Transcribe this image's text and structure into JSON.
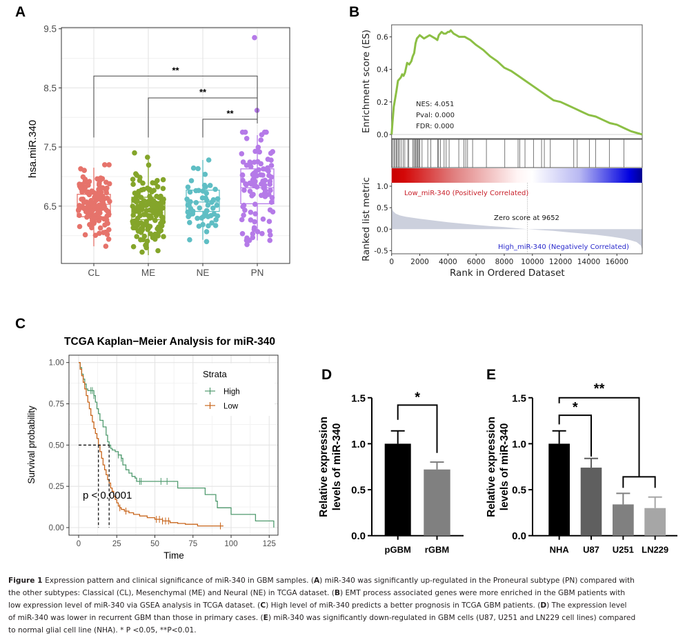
{
  "panels": {
    "A": {
      "label": "A"
    },
    "B": {
      "label": "B"
    },
    "C": {
      "label": "C"
    },
    "D": {
      "label": "D"
    },
    "E": {
      "label": "E"
    }
  },
  "chart_data": [
    {
      "id": "A",
      "type": "box",
      "title": "",
      "xlabel": "",
      "ylabel": "hsa.miR.340",
      "ylim": [
        5.53,
        9.52
      ],
      "yticks": [
        6.5,
        7.5,
        8.5,
        9.5
      ],
      "ytick_labels": [
        "6.5",
        "7.5",
        "8.5",
        "9.5"
      ],
      "grid": true,
      "categories": [
        "CL",
        "ME",
        "NE",
        "PN"
      ],
      "colors": [
        "#e6736b",
        "#84a52a",
        "#5fbec4",
        "#b57ae8"
      ],
      "boxes": [
        {
          "category": "CL",
          "whisker_low": 5.82,
          "q1": 6.32,
          "median": 6.53,
          "q3": 6.7,
          "whisker_high": 7.15,
          "outliers": []
        },
        {
          "category": "ME",
          "whisker_low": 5.67,
          "q1": 6.27,
          "median": 6.44,
          "q3": 6.65,
          "whisker_high": 7.35,
          "outliers": []
        },
        {
          "category": "NE",
          "whisker_low": 5.93,
          "q1": 6.41,
          "median": 6.57,
          "q3": 6.77,
          "whisker_high": 7.28,
          "outliers": [
            7.28,
            5.9
          ]
        },
        {
          "category": "PN",
          "whisker_low": 5.92,
          "q1": 6.54,
          "median": 6.81,
          "q3": 7.13,
          "whisker_high": 7.7,
          "outliers": [
            9.35,
            8.12,
            5.85
          ]
        }
      ],
      "jitter_point_counts": {
        "CL": 140,
        "ME": 160,
        "NE": 55,
        "PN": 100
      },
      "significance": [
        {
          "from": "CL",
          "to": "PN",
          "label": "**",
          "y": 8.7
        },
        {
          "from": "ME",
          "to": "PN",
          "label": "**",
          "y": 8.33
        },
        {
          "from": "NE",
          "to": "PN",
          "label": "**",
          "y": 7.97
        }
      ]
    },
    {
      "id": "B",
      "type": "line",
      "title": "",
      "xlabel": "Rank in Ordered Dataset",
      "ylabel_top": "Enrichment score (ES)",
      "ylabel_bottom": "Ranked list metric",
      "xlim": [
        0,
        17800
      ],
      "xticks": [
        0,
        2000,
        4000,
        6000,
        8000,
        10000,
        12000,
        14000,
        16000
      ],
      "xtick_labels": [
        "0",
        "2000",
        "4000",
        "6000",
        "8000",
        "10000",
        "12000",
        "14000",
        "16000"
      ],
      "es_ylim": [
        0,
        0.67
      ],
      "es_yticks": [
        "0.0",
        "0.2",
        "0.4",
        "0.6"
      ],
      "es_color": "#8cbf45",
      "es_curve": {
        "x": [
          0,
          60,
          150,
          250,
          350,
          450,
          550,
          650,
          750,
          850,
          950,
          1100,
          1250,
          1400,
          1500,
          1600,
          1700,
          1800,
          1900,
          2000,
          2150,
          2300,
          2500,
          2700,
          2900,
          3100,
          3250,
          3350,
          3450,
          3550,
          3700,
          3850,
          4000,
          4100,
          4200,
          4400,
          4600,
          4800,
          5000,
          5200,
          5400,
          5600,
          6000,
          6500,
          7000,
          7500,
          8000,
          8500,
          9000,
          9500,
          10000,
          10500,
          11000,
          11500,
          12000,
          12500,
          13000,
          13500,
          14000,
          14500,
          15000,
          15500,
          16000,
          16500,
          17000,
          17800
        ],
        "y": [
          0.0,
          0.07,
          0.17,
          0.22,
          0.27,
          0.33,
          0.34,
          0.35,
          0.37,
          0.36,
          0.38,
          0.44,
          0.43,
          0.45,
          0.48,
          0.5,
          0.56,
          0.59,
          0.6,
          0.61,
          0.6,
          0.59,
          0.6,
          0.61,
          0.6,
          0.59,
          0.58,
          0.61,
          0.62,
          0.63,
          0.62,
          0.62,
          0.63,
          0.63,
          0.64,
          0.62,
          0.61,
          0.6,
          0.6,
          0.6,
          0.59,
          0.58,
          0.55,
          0.52,
          0.48,
          0.45,
          0.41,
          0.39,
          0.36,
          0.33,
          0.3,
          0.27,
          0.24,
          0.21,
          0.2,
          0.18,
          0.16,
          0.14,
          0.12,
          0.11,
          0.09,
          0.07,
          0.06,
          0.04,
          0.02,
          0.0
        ]
      },
      "hits": [
        64,
        162,
        227,
        325,
        392,
        490,
        555,
        686,
        818,
        936,
        1146,
        1212,
        1506,
        1588,
        1672,
        1720,
        1800,
        1867,
        1932,
        1998,
        2161,
        2568,
        2779,
        3269,
        3336,
        3463,
        3728,
        3875,
        4085,
        4771,
        5130,
        5263,
        5394,
        5752,
        6732,
        8037,
        8983,
        9096,
        9473,
        10075,
        10650,
        10846,
        11271,
        12937,
        13182,
        14044,
        14485,
        15465,
        16494
      ],
      "metric_ylim": [
        -0.6,
        1.1
      ],
      "metric_yticks": [
        "-0.5",
        "0.0",
        "0.5",
        "1.0"
      ],
      "metric_curve": {
        "x": [
          0,
          100,
          300,
          600,
          1000,
          2000,
          3000,
          4000,
          5000,
          6000,
          7000,
          8000,
          9000,
          9652,
          10500,
          11500,
          12500,
          13500,
          14500,
          15500,
          16500,
          17000,
          17400,
          17700,
          17800
        ],
        "y": [
          0.5,
          0.42,
          0.36,
          0.32,
          0.29,
          0.24,
          0.2,
          0.16,
          0.13,
          0.1,
          0.07,
          0.05,
          0.02,
          0.0,
          -0.02,
          -0.04,
          -0.07,
          -0.1,
          -0.13,
          -0.17,
          -0.22,
          -0.26,
          -0.3,
          -0.38,
          -0.48
        ]
      },
      "metric_fill_color": "#ccd0dd",
      "zero_cross": 9652,
      "annotations": {
        "nes": "NES: 4.051",
        "pval": "Pval: 0.000",
        "fdr": "FDR: 0.000",
        "positive": "Low_miR-340 (Positively Correlated)",
        "negative": "High_miR-340 (Negatively Correlated)",
        "zero": "Zero score at 9652"
      },
      "positive_color": "#c8202a",
      "negative_color": "#2a2acc"
    },
    {
      "id": "C",
      "type": "line",
      "title": "TCGA Kaplan−Meier Analysis for miR-340",
      "xlabel": "Time",
      "ylabel": "Survival probability",
      "xlim": [
        -5,
        131
      ],
      "ylim": [
        -0.05,
        1.04
      ],
      "xticks": [
        0,
        25,
        50,
        75,
        100,
        125
      ],
      "xtick_labels": [
        "0",
        "25",
        "50",
        "75",
        "100",
        "125"
      ],
      "yticks": [
        0,
        0.25,
        0.5,
        0.75,
        1.0
      ],
      "ytick_labels": [
        "0.00",
        "0.25",
        "0.50",
        "0.75",
        "1.00"
      ],
      "grid": true,
      "legend": {
        "title": "Strata",
        "position": "top-right",
        "entries": [
          "High",
          "Low"
        ]
      },
      "series": [
        {
          "name": "High",
          "color": "#4f9a6e",
          "step_x": [
            0,
            1,
            2,
            3,
            4,
            5,
            6,
            7,
            10,
            11,
            12,
            13,
            14,
            16,
            18,
            19,
            20,
            21,
            22,
            24,
            26,
            28,
            29,
            31,
            33,
            35,
            37,
            38,
            40,
            65,
            83,
            90,
            91,
            100,
            116,
            128
          ],
          "step_y": [
            1.0,
            0.97,
            0.93,
            0.9,
            0.87,
            0.84,
            0.83,
            0.83,
            0.8,
            0.76,
            0.72,
            0.69,
            0.65,
            0.61,
            0.56,
            0.52,
            0.5,
            0.48,
            0.47,
            0.46,
            0.44,
            0.42,
            0.38,
            0.35,
            0.33,
            0.31,
            0.3,
            0.28,
            0.28,
            0.24,
            0.2,
            0.16,
            0.12,
            0.08,
            0.04,
            0.0
          ],
          "censor_x": [
            8,
            9,
            10,
            26,
            28,
            40,
            41,
            54,
            58
          ],
          "median": 20
        },
        {
          "name": "Low",
          "color": "#c8651b",
          "step_x": [
            0,
            1,
            2,
            3,
            4,
            5,
            6,
            7,
            8,
            9,
            10,
            11,
            12,
            13,
            14,
            15,
            16,
            17,
            18,
            19,
            20,
            21,
            22,
            23,
            24,
            25,
            26,
            27,
            28,
            30,
            33,
            36,
            40,
            45,
            50,
            55,
            60,
            65,
            70,
            78,
            85,
            92,
            95
          ],
          "step_y": [
            1.0,
            0.96,
            0.92,
            0.88,
            0.84,
            0.8,
            0.76,
            0.72,
            0.68,
            0.64,
            0.6,
            0.57,
            0.54,
            0.5,
            0.46,
            0.42,
            0.38,
            0.35,
            0.32,
            0.29,
            0.27,
            0.24,
            0.22,
            0.19,
            0.17,
            0.15,
            0.13,
            0.12,
            0.11,
            0.1,
            0.09,
            0.08,
            0.07,
            0.06,
            0.05,
            0.04,
            0.03,
            0.025,
            0.02,
            0.01,
            0.01,
            0.01,
            0.01
          ],
          "censor_x": [
            27,
            31,
            51,
            53,
            55,
            57,
            59,
            93
          ],
          "median": 13
        }
      ],
      "annotation": "p < 0.0001"
    },
    {
      "id": "D",
      "type": "bar",
      "title": "",
      "xlabel": "",
      "ylabel": "Relative expression levels of miR-340",
      "ylabel_lines": [
        "Relative expression",
        "levels of miR-340"
      ],
      "ylim": [
        0,
        1.5
      ],
      "yticks": [
        "0.0",
        "0.5",
        "1.0",
        "1.5"
      ],
      "categories": [
        "pGBM",
        "rGBM"
      ],
      "values": [
        1.0,
        0.72
      ],
      "errors": [
        0.14,
        0.08
      ],
      "colors": [
        "#000000",
        "#808080"
      ],
      "significance": [
        {
          "from": "pGBM",
          "to": "rGBM",
          "label": "*"
        }
      ]
    },
    {
      "id": "E",
      "type": "bar",
      "title": "",
      "xlabel": "",
      "ylabel": "Relative expression levels of miR-340",
      "ylabel_lines": [
        "Relative expression",
        "levels of miR-340"
      ],
      "ylim": [
        0,
        1.5
      ],
      "yticks": [
        "0.0",
        "0.5",
        "1.0",
        "1.5"
      ],
      "categories": [
        "NHA",
        "U87",
        "U251",
        "LN229"
      ],
      "values": [
        1.0,
        0.74,
        0.34,
        0.3
      ],
      "errors": [
        0.14,
        0.1,
        0.12,
        0.12
      ],
      "colors": [
        "#000000",
        "#5f5f5f",
        "#808080",
        "#a6a6a6"
      ],
      "significance": [
        {
          "from": "NHA",
          "to": "U87",
          "label": "*"
        },
        {
          "from": "NHA",
          "to": "U251+LN229",
          "label": "**"
        }
      ]
    }
  ],
  "caption": {
    "figure_label": "Figure 1",
    "lines": [
      [
        {
          "t": "Expression pattern and clinical significance of miR-340 in GBM samples. ("
        },
        {
          "b": "A"
        },
        {
          "t": ") miR-340 was significantly up-regulated in the Proneural subtype (PN) compared with"
        }
      ],
      [
        {
          "t": "the other subtypes: Classical (CL), Mesenchymal (ME) and Neural (NE) in TCGA dataset. ("
        },
        {
          "b": "B"
        },
        {
          "t": ") EMT process associated genes were more enriched in the GBM patients with"
        }
      ],
      [
        {
          "t": "low expression level of miR-340 via GSEA analysis in TCGA dataset. ("
        },
        {
          "b": "C"
        },
        {
          "t": ") High level of miR-340 predicts a better prognosis in TCGA GBM patients. ("
        },
        {
          "b": "D"
        },
        {
          "t": ") The expression level"
        }
      ],
      [
        {
          "t": "of miR-340 was lower in recurrent GBM than those in primary cases. ("
        },
        {
          "b": "E"
        },
        {
          "t": ") miR-340 was significantly down-regulated in GBM cells (U87, U251 and LN229 cell lines) compared"
        }
      ],
      [
        {
          "t": "to normal glial cell line (NHA). * P <0.05, **P<0.01."
        }
      ]
    ]
  }
}
